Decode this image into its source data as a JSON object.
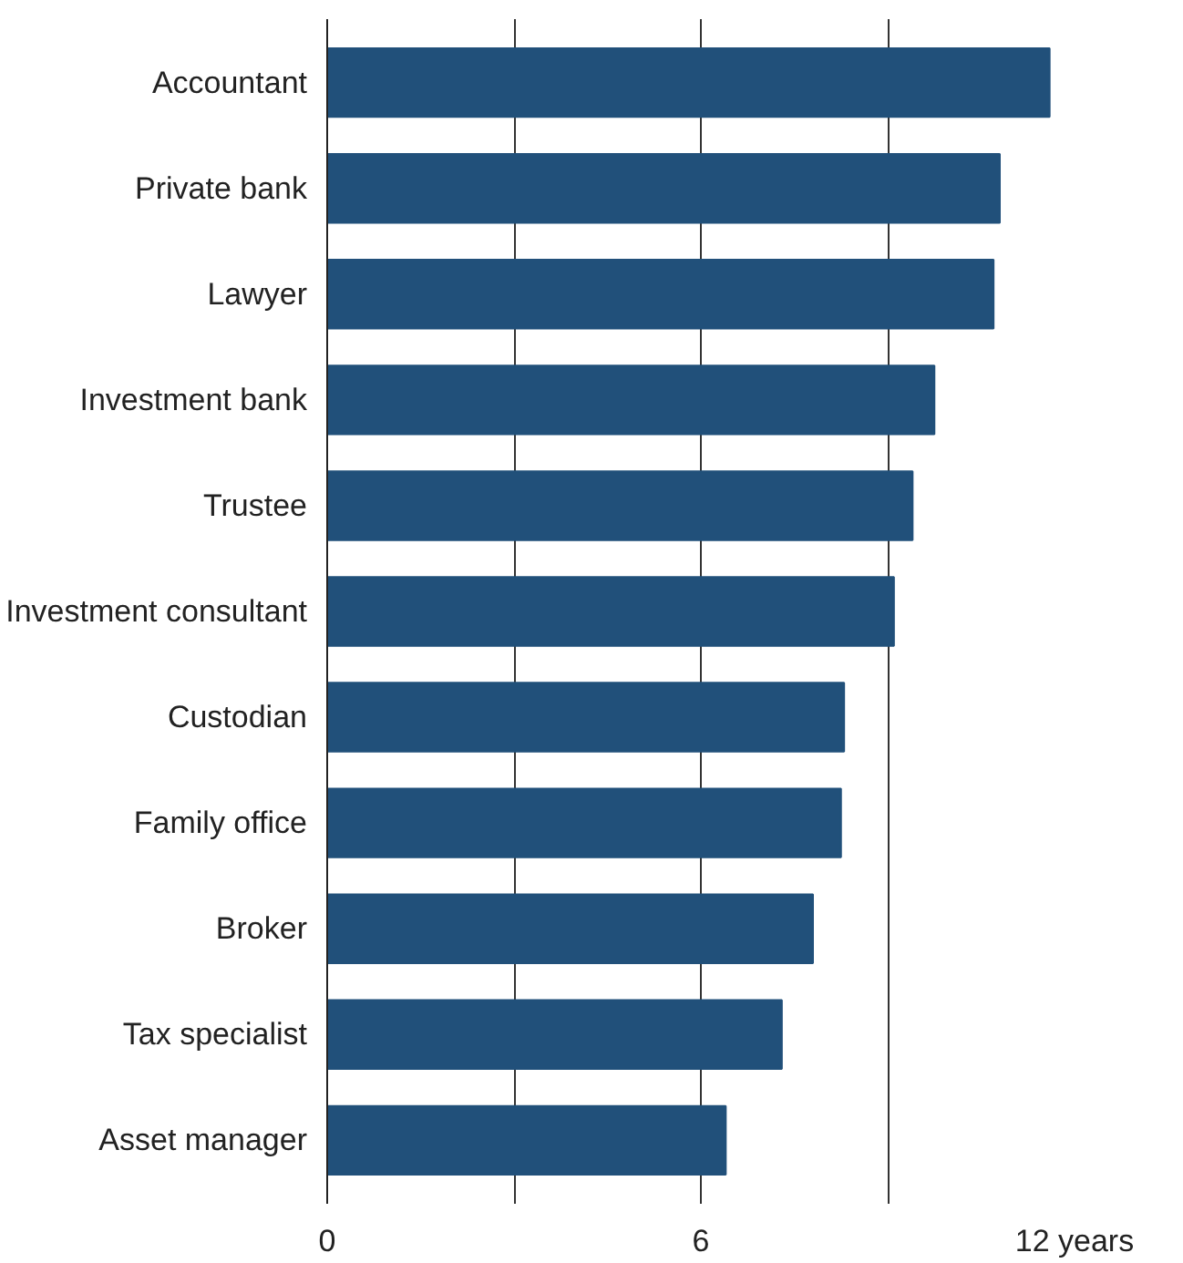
{
  "chart_data": {
    "type": "bar",
    "orientation": "horizontal",
    "categories": [
      "Accountant",
      "Private bank",
      "Lawyer",
      "Investment bank",
      "Trustee",
      "Investment consultant",
      "Custodian",
      "Family office",
      "Broker",
      "Tax specialist",
      "Asset manager"
    ],
    "values": [
      11.6,
      10.8,
      10.7,
      9.75,
      9.4,
      9.1,
      8.3,
      8.25,
      7.8,
      7.3,
      6.4
    ],
    "color": "#21507a",
    "xlim": [
      0,
      12
    ],
    "xticks": [
      0,
      {
        "value": 3,
        "label": null
      },
      6,
      {
        "value": 9,
        "label": null
      },
      {
        "value": 12,
        "label": "12 years"
      }
    ],
    "grid": "x"
  }
}
